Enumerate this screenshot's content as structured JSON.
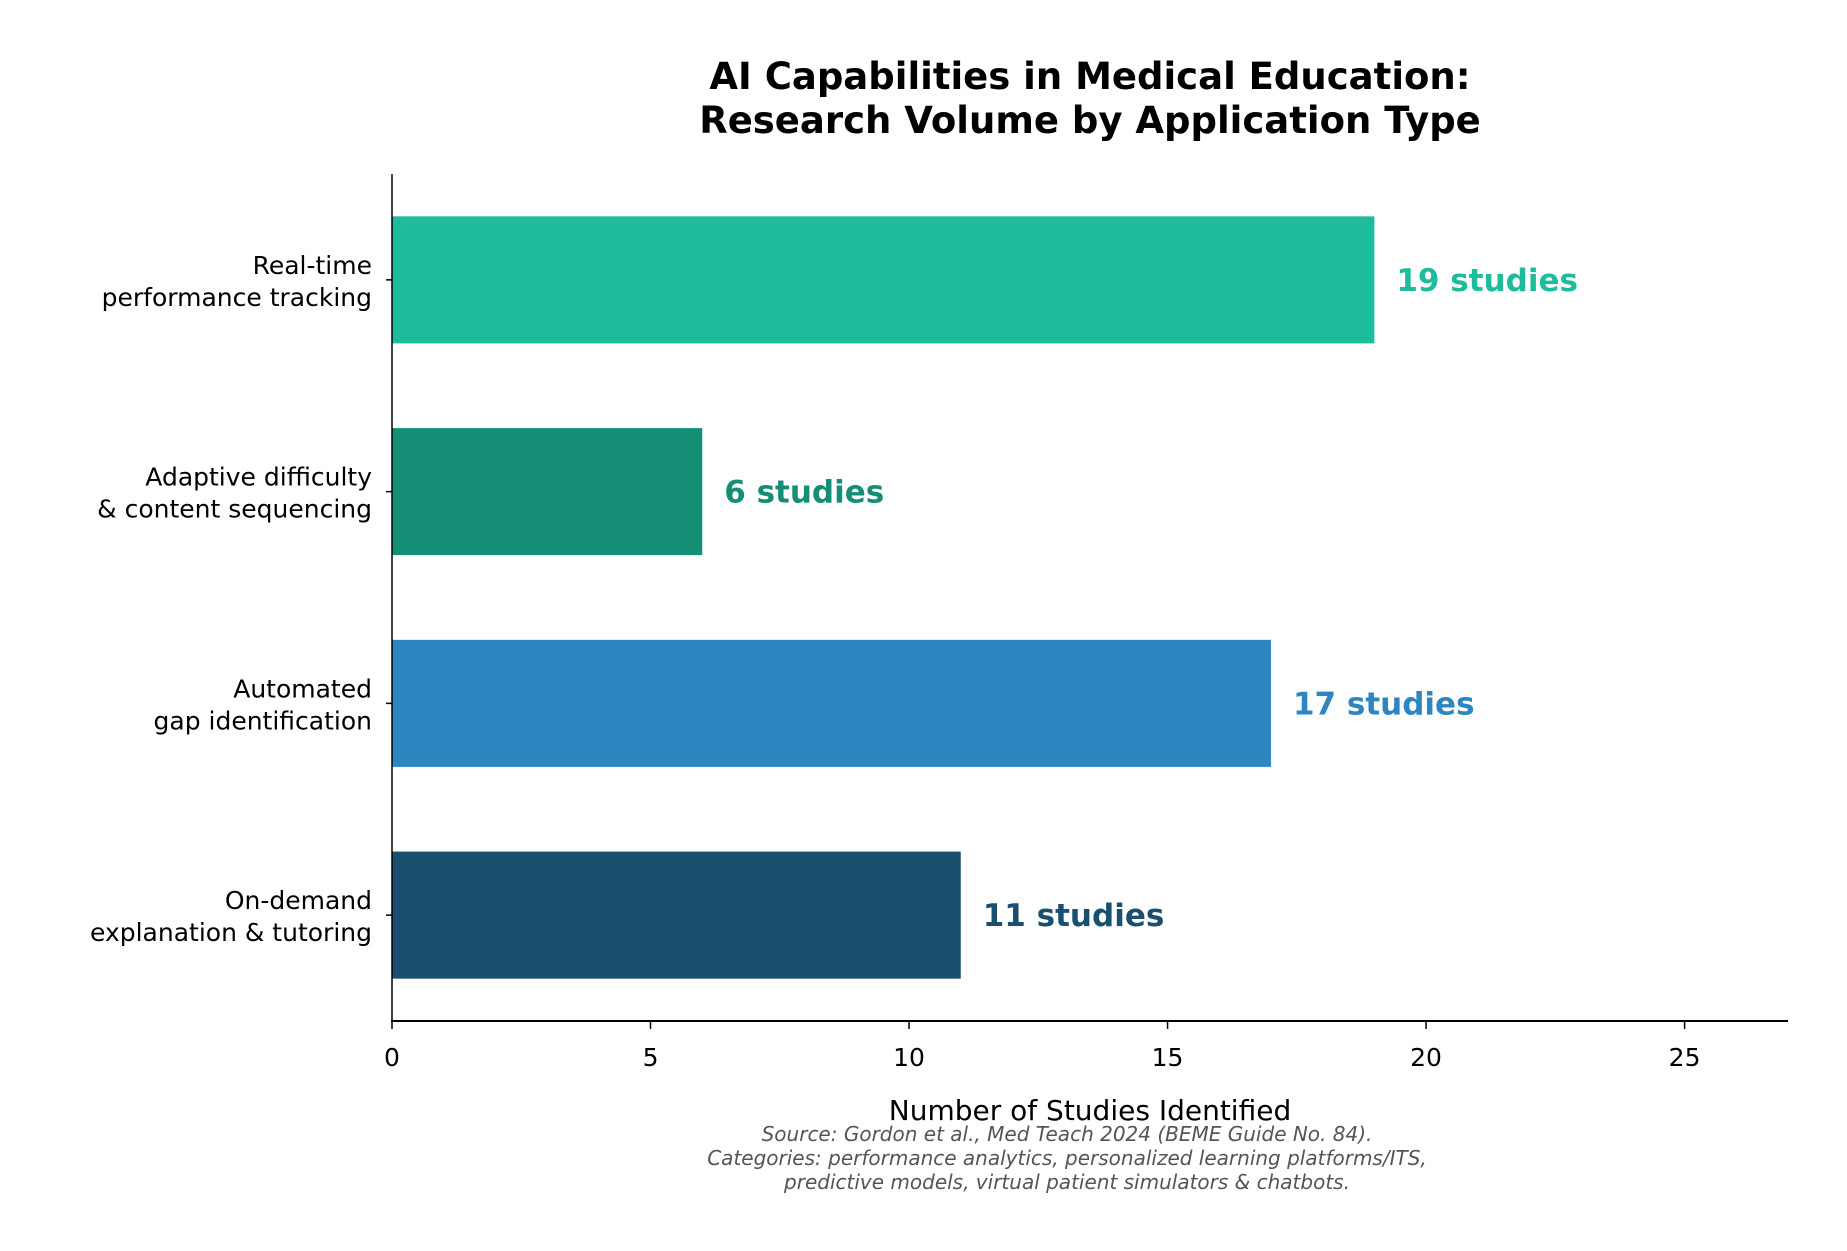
{
  "chart_data": {
    "type": "bar",
    "orientation": "horizontal",
    "title": [
      "AI Capabilities in Medical Education:",
      "Research Volume by Application Type"
    ],
    "xlabel": "Number of Studies Identified",
    "ylabel": "",
    "xlim": [
      0,
      27
    ],
    "xticks": [
      0,
      5,
      10,
      15,
      20,
      25
    ],
    "grid": false,
    "categories": [
      [
        "Real-time",
        "performance tracking"
      ],
      [
        "Adaptive difficulty",
        "& content sequencing"
      ],
      [
        "Automated",
        "gap identification"
      ],
      [
        "On-demand",
        "explanation & tutoring"
      ]
    ],
    "values": [
      19,
      6,
      17,
      11
    ],
    "data_labels": [
      "19 studies",
      "6 studies",
      "17 studies",
      "11 studies"
    ],
    "colors": [
      "#1dbc9c",
      "#148f76",
      "#2e86c1",
      "#1b4f6f"
    ],
    "footnote": [
      "Source: Gordon et al., Med Teach 2024 (BEME Guide No. 84).",
      "Categories: performance analytics, personalized learning platforms/ITS,",
      "predictive models, virtual patient simulators & chatbots."
    ]
  }
}
